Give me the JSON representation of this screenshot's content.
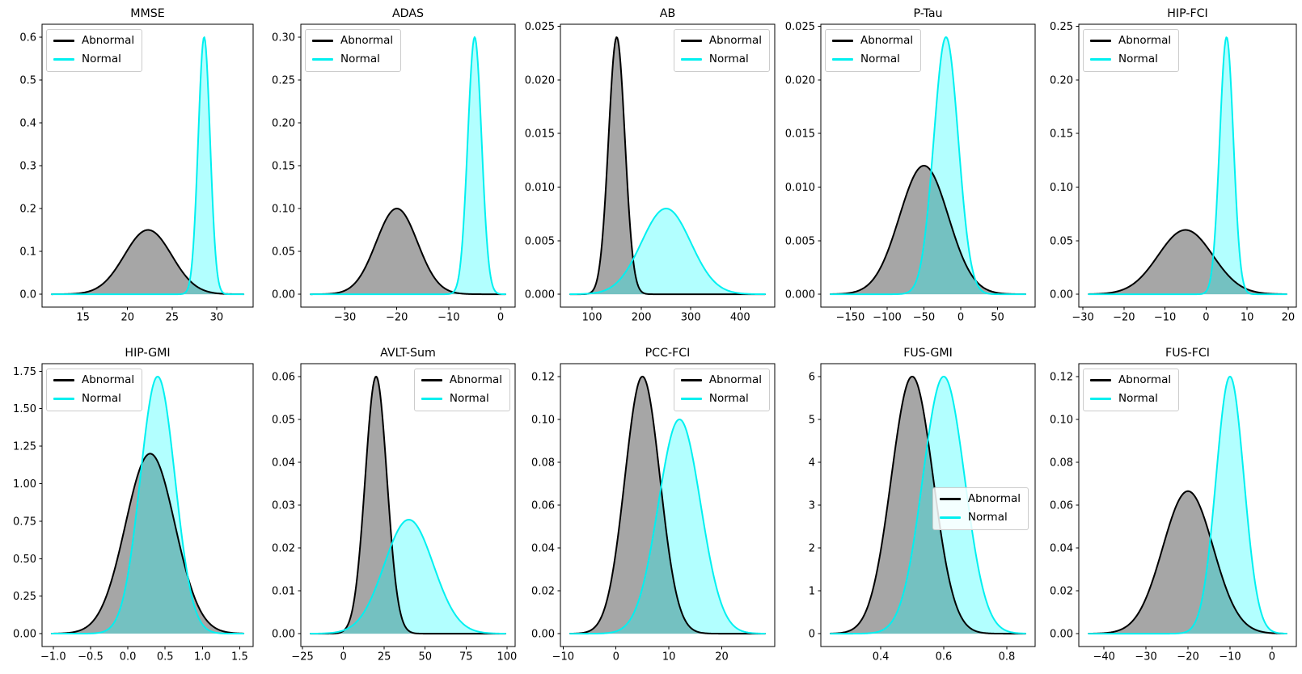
{
  "figure": {
    "background": "#ffffff",
    "rows": 2,
    "cols": 5,
    "legend_labels": [
      "Abnormal",
      "Normal"
    ]
  },
  "colors": {
    "abnormal_line": "#000000",
    "abnormal_fill": "rgba(0,0,0,0.35)",
    "normal_line": "#00F0F0",
    "normal_fill": "rgba(0,255,255,0.30)",
    "legend_border": "#cccccc",
    "axis": "#000000"
  },
  "chart_data": [
    {
      "type": "area",
      "title": "MMSE",
      "legend_loc": "upper-left",
      "xlim": [
        10.4,
        34.1
      ],
      "ylim": [
        -0.03,
        0.63
      ],
      "xticks": {
        "values": [
          15,
          20,
          25,
          30
        ],
        "labels": [
          "15",
          "20",
          "25",
          "30"
        ]
      },
      "yticks": {
        "values": [
          0.0,
          0.1,
          0.2,
          0.3,
          0.4,
          0.5,
          0.6
        ],
        "labels": [
          "0.0",
          "0.1",
          "0.2",
          "0.3",
          "0.4",
          "0.5",
          "0.6"
        ]
      },
      "series": [
        {
          "name": "Abnormal",
          "distribution": "gaussian",
          "mean": 22.3,
          "sd": 2.66,
          "peak": 0.15
        },
        {
          "name": "Normal",
          "distribution": "gaussian",
          "mean": 28.6,
          "sd": 0.665,
          "peak": 0.6
        }
      ]
    },
    {
      "type": "area",
      "title": "ADAS",
      "legend_loc": "upper-left",
      "xlim": [
        -38.5,
        2.8
      ],
      "ylim": [
        -0.015,
        0.315
      ],
      "xticks": {
        "values": [
          -30,
          -20,
          -10,
          0
        ],
        "labels": [
          "−30",
          "−20",
          "−10",
          "0"
        ]
      },
      "yticks": {
        "values": [
          0.0,
          0.05,
          0.1,
          0.15,
          0.2,
          0.25,
          0.3
        ],
        "labels": [
          "0.00",
          "0.05",
          "0.10",
          "0.15",
          "0.20",
          "0.25",
          "0.30"
        ]
      },
      "series": [
        {
          "name": "Abnormal",
          "distribution": "gaussian",
          "mean": -20,
          "sd": 3.99,
          "peak": 0.1
        },
        {
          "name": "Normal",
          "distribution": "gaussian",
          "mean": -5,
          "sd": 1.33,
          "peak": 0.3
        }
      ]
    },
    {
      "type": "area",
      "title": "AB",
      "legend_loc": "upper-right",
      "xlim": [
        36,
        470
      ],
      "ylim": [
        -0.0012,
        0.0252
      ],
      "xticks": {
        "values": [
          100,
          200,
          300,
          400
        ],
        "labels": [
          "100",
          "200",
          "300",
          "400"
        ]
      },
      "yticks": {
        "values": [
          0.0,
          0.005,
          0.01,
          0.015,
          0.02,
          0.025
        ],
        "labels": [
          "0.000",
          "0.005",
          "0.010",
          "0.015",
          "0.020",
          "0.025"
        ]
      },
      "series": [
        {
          "name": "Abnormal",
          "distribution": "gaussian",
          "mean": 150,
          "sd": 16.6,
          "peak": 0.024
        },
        {
          "name": "Normal",
          "distribution": "gaussian",
          "mean": 250,
          "sd": 49.9,
          "peak": 0.008
        }
      ]
    },
    {
      "type": "area",
      "title": "P-Tau",
      "legend_loc": "upper-left",
      "xlim": [
        -190,
        101
      ],
      "ylim": [
        -0.0012,
        0.0252
      ],
      "xticks": {
        "values": [
          -150,
          -100,
          -50,
          0,
          50
        ],
        "labels": [
          "−150",
          "−100",
          "−50",
          "0",
          "50"
        ]
      },
      "yticks": {
        "values": [
          0.0,
          0.005,
          0.01,
          0.015,
          0.02,
          0.025
        ],
        "labels": [
          "0.000",
          "0.005",
          "0.010",
          "0.015",
          "0.020",
          "0.025"
        ]
      },
      "series": [
        {
          "name": "Abnormal",
          "distribution": "gaussian",
          "mean": -50,
          "sd": 33.2,
          "peak": 0.012
        },
        {
          "name": "Normal",
          "distribution": "gaussian",
          "mean": -20,
          "sd": 16.6,
          "peak": 0.024
        }
      ]
    },
    {
      "type": "area",
      "title": "HIP-FCI",
      "legend_loc": "upper-left",
      "xlim": [
        -31,
        22
      ],
      "ylim": [
        -0.012,
        0.252
      ],
      "xticks": {
        "values": [
          -30,
          -20,
          -10,
          0,
          10,
          20
        ],
        "labels": [
          "−30",
          "−20",
          "−10",
          "0",
          "10",
          "20"
        ]
      },
      "yticks": {
        "values": [
          0.0,
          0.05,
          0.1,
          0.15,
          0.2,
          0.25
        ],
        "labels": [
          "0.00",
          "0.05",
          "0.10",
          "0.15",
          "0.20",
          "0.25"
        ]
      },
      "series": [
        {
          "name": "Abnormal",
          "distribution": "gaussian",
          "mean": -5,
          "sd": 6.65,
          "peak": 0.06
        },
        {
          "name": "Normal",
          "distribution": "gaussian",
          "mean": 5,
          "sd": 1.66,
          "peak": 0.24
        }
      ]
    },
    {
      "type": "area",
      "title": "HIP-GMI",
      "legend_loc": "upper-left",
      "xlim": [
        -1.15,
        1.68
      ],
      "ylim": [
        -0.086,
        1.8
      ],
      "xticks": {
        "values": [
          -1.0,
          -0.5,
          0.0,
          0.5,
          1.0,
          1.5
        ],
        "labels": [
          "−1.0",
          "−0.5",
          "0.0",
          "0.5",
          "1.0",
          "1.5"
        ]
      },
      "yticks": {
        "values": [
          0.0,
          0.25,
          0.5,
          0.75,
          1.0,
          1.25,
          1.5,
          1.75
        ],
        "labels": [
          "0.00",
          "0.25",
          "0.50",
          "0.75",
          "1.00",
          "1.25",
          "1.50",
          "1.75"
        ]
      },
      "series": [
        {
          "name": "Abnormal",
          "distribution": "gaussian",
          "mean": 0.3,
          "sd": 0.332,
          "peak": 1.2
        },
        {
          "name": "Normal",
          "distribution": "gaussian",
          "mean": 0.4,
          "sd": 0.2327,
          "peak": 1.714
        }
      ]
    },
    {
      "type": "area",
      "title": "AVLT-Sum",
      "legend_loc": "upper-right",
      "xlim": [
        -26,
        105
      ],
      "ylim": [
        -0.003,
        0.063
      ],
      "xticks": {
        "values": [
          -25,
          0,
          25,
          50,
          75,
          100
        ],
        "labels": [
          "−25",
          "0",
          "25",
          "50",
          "75",
          "100"
        ]
      },
      "yticks": {
        "values": [
          0.0,
          0.01,
          0.02,
          0.03,
          0.04,
          0.05,
          0.06
        ],
        "labels": [
          "0.00",
          "0.01",
          "0.02",
          "0.03",
          "0.04",
          "0.05",
          "0.06"
        ]
      },
      "series": [
        {
          "name": "Abnormal",
          "distribution": "gaussian",
          "mean": 20,
          "sd": 6.65,
          "peak": 0.06
        },
        {
          "name": "Normal",
          "distribution": "gaussian",
          "mean": 40,
          "sd": 15.0,
          "peak": 0.0266
        }
      ]
    },
    {
      "type": "area",
      "title": "PCC-FCI",
      "legend_loc": "upper-right",
      "xlim": [
        -10.5,
        30
      ],
      "ylim": [
        -0.006,
        0.126
      ],
      "xticks": {
        "values": [
          -10,
          0,
          10,
          20
        ],
        "labels": [
          "−10",
          "0",
          "10",
          "20"
        ]
      },
      "yticks": {
        "values": [
          0.0,
          0.02,
          0.04,
          0.06,
          0.08,
          0.1,
          0.12
        ],
        "labels": [
          "0.00",
          "0.02",
          "0.04",
          "0.06",
          "0.08",
          "0.10",
          "0.12"
        ]
      },
      "series": [
        {
          "name": "Abnormal",
          "distribution": "gaussian",
          "mean": 5,
          "sd": 3.32,
          "peak": 0.12
        },
        {
          "name": "Normal",
          "distribution": "gaussian",
          "mean": 12,
          "sd": 3.99,
          "peak": 0.1
        }
      ]
    },
    {
      "type": "area",
      "title": "FUS-GMI",
      "legend_loc": "center-right",
      "legend_top": 186,
      "xlim": [
        0.21,
        0.89
      ],
      "ylim": [
        -0.3,
        6.3
      ],
      "xticks": {
        "values": [
          0.4,
          0.6,
          0.8
        ],
        "labels": [
          "0.4",
          "0.6",
          "0.8"
        ]
      },
      "yticks": {
        "values": [
          0,
          1,
          2,
          3,
          4,
          5,
          6
        ],
        "labels": [
          "0",
          "1",
          "2",
          "3",
          "4",
          "5",
          "6"
        ]
      },
      "series": [
        {
          "name": "Abnormal",
          "distribution": "gaussian",
          "mean": 0.5,
          "sd": 0.0665,
          "peak": 6.0
        },
        {
          "name": "Normal",
          "distribution": "gaussian",
          "mean": 0.6,
          "sd": 0.0665,
          "peak": 6.0
        }
      ]
    },
    {
      "type": "area",
      "title": "FUS-FCI",
      "legend_loc": "upper-left",
      "xlim": [
        -46,
        5.8
      ],
      "ylim": [
        -0.006,
        0.126
      ],
      "xticks": {
        "values": [
          -40,
          -30,
          -20,
          -10,
          0
        ],
        "labels": [
          "−40",
          "−30",
          "−20",
          "−10",
          "0"
        ]
      },
      "yticks": {
        "values": [
          0.0,
          0.02,
          0.04,
          0.06,
          0.08,
          0.1,
          0.12
        ],
        "labels": [
          "0.00",
          "0.02",
          "0.04",
          "0.06",
          "0.08",
          "0.10",
          "0.12"
        ]
      },
      "series": [
        {
          "name": "Abnormal",
          "distribution": "gaussian",
          "mean": -20,
          "sd": 6.0,
          "peak": 0.0665
        },
        {
          "name": "Normal",
          "distribution": "gaussian",
          "mean": -10,
          "sd": 3.32,
          "peak": 0.12
        }
      ]
    }
  ]
}
